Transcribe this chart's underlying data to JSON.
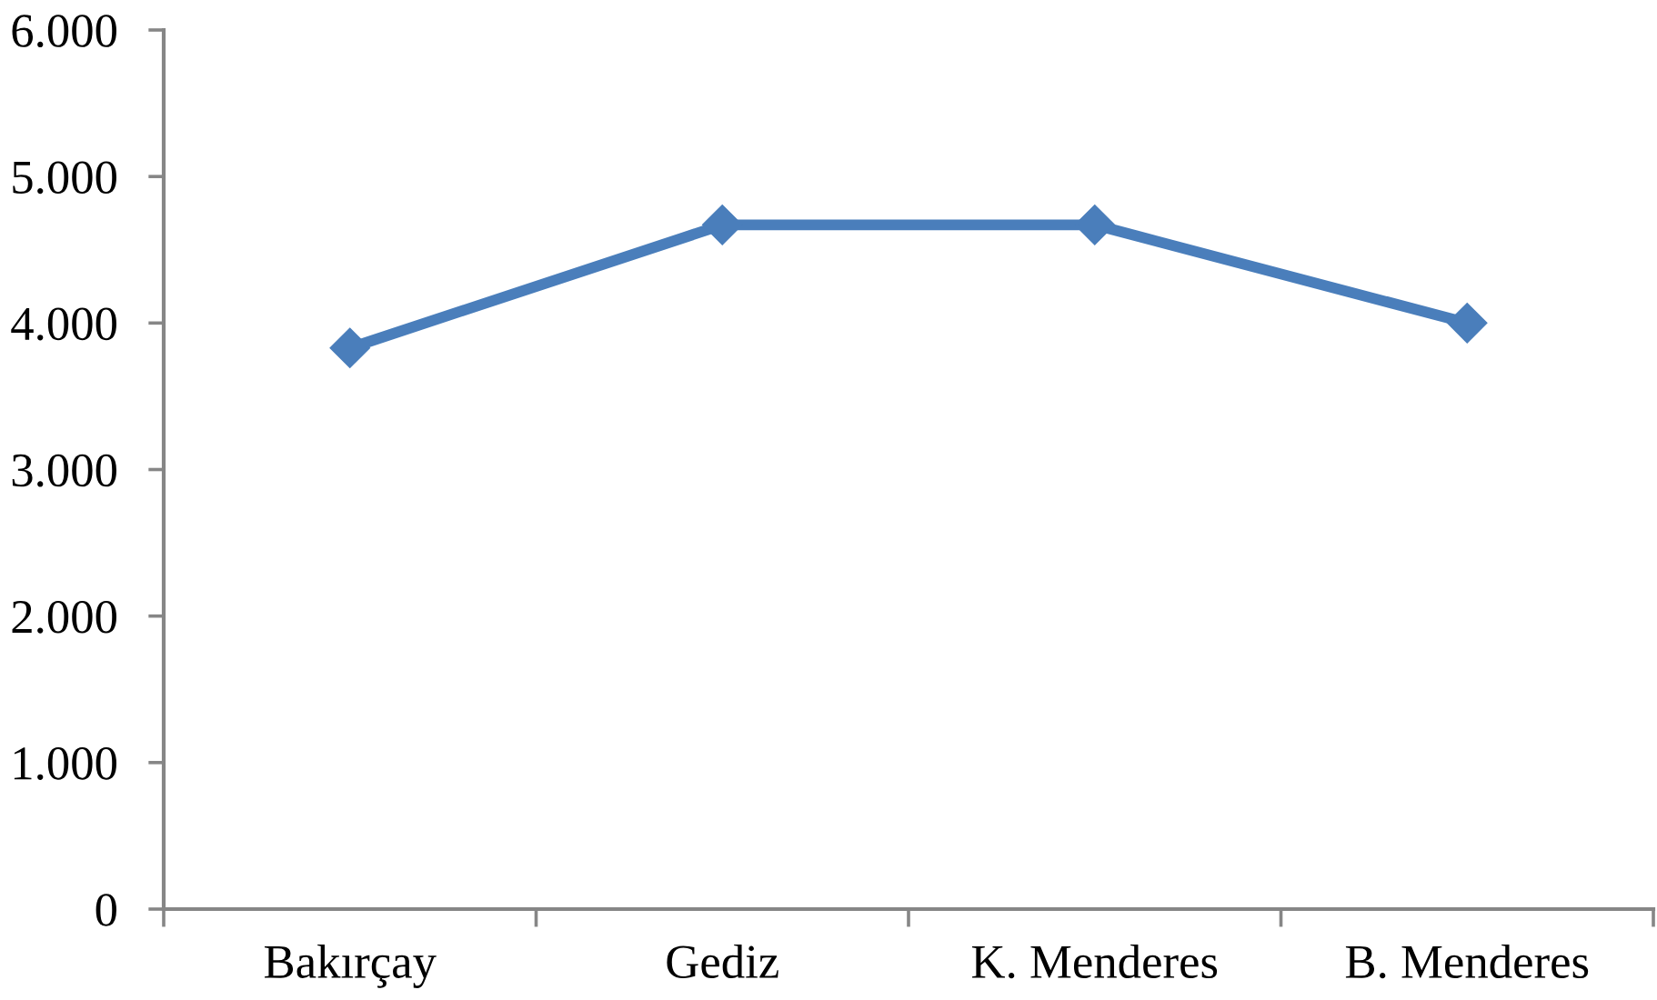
{
  "chart_data": {
    "type": "line",
    "categories": [
      "Bakırçay",
      "Gediz",
      "K. Menderes",
      "B. Menderes"
    ],
    "series": [
      {
        "color": "#4a7ebb",
        "values": [
          3830,
          4670,
          4670,
          4000
        ]
      }
    ],
    "ylim": [
      0,
      6000
    ],
    "yticks": [
      0,
      {
        "value": 1000,
        "label": "1.000"
      },
      {
        "value": 2000,
        "label": "2.000"
      },
      {
        "value": 3000,
        "label": "3.000"
      },
      {
        "value": 4000,
        "label": "4.000"
      },
      {
        "value": 5000,
        "label": "5.000"
      },
      {
        "value": 6000,
        "label": "6.000"
      }
    ],
    "marker": "diamond",
    "line_style": "solid"
  }
}
